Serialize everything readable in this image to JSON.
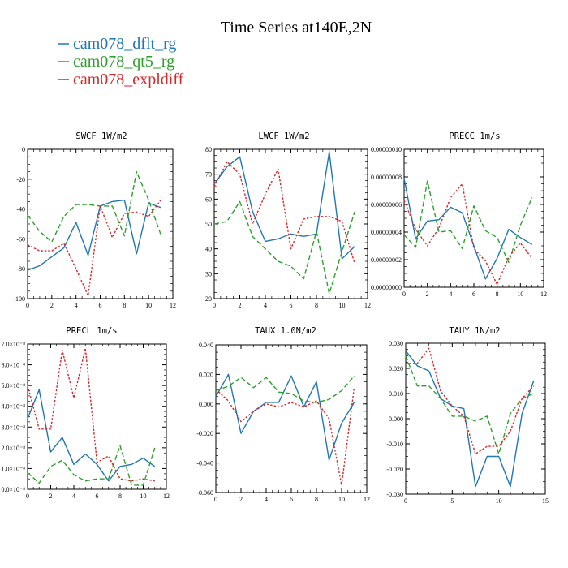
{
  "title": "Time Series at140E,2N",
  "legend": [
    {
      "name": "cam078_dflt_rg",
      "color": "#1f77b4"
    },
    {
      "name": "cam078_qt5_rg",
      "color": "#2ca02c"
    },
    {
      "name": "cam078_expldiff",
      "color": "#d62728"
    }
  ],
  "chart_data": [
    {
      "type": "line",
      "title": "SWCF  1W/m2",
      "x": [
        0,
        1,
        2,
        3,
        4,
        5,
        6,
        7,
        8,
        9,
        10,
        11
      ],
      "xlim": [
        0,
        12
      ],
      "xticks": [
        "0",
        "2",
        "4",
        "6",
        "8",
        "10",
        "12"
      ],
      "ylim": [
        -100,
        0
      ],
      "yticks": [
        "0",
        "-20",
        "-40",
        "-60",
        "-80",
        "-100"
      ],
      "series": [
        {
          "name": "cam078_dflt_rg",
          "values": [
            -81,
            -78,
            -72,
            -66,
            -49,
            -71,
            -38,
            -35,
            -34,
            -70,
            -36,
            -39
          ]
        },
        {
          "name": "cam078_qt5_rg",
          "values": [
            -44,
            -55,
            -62,
            -45,
            -37,
            -37,
            -38,
            -38,
            -58,
            -15,
            -34,
            -57
          ]
        },
        {
          "name": "cam078_expldiff",
          "values": [
            -64,
            -68,
            -68,
            -63,
            -80,
            -98,
            -38,
            -59,
            -43,
            -42,
            -45,
            -34
          ]
        }
      ]
    },
    {
      "type": "line",
      "title": "LWCF  1W/m2",
      "x": [
        0,
        1,
        2,
        3,
        4,
        5,
        6,
        7,
        8,
        9,
        10,
        11
      ],
      "xlim": [
        0,
        12
      ],
      "xticks": [
        "0",
        "2",
        "4",
        "6",
        "8",
        "10",
        "12"
      ],
      "ylim": [
        20,
        80
      ],
      "yticks": [
        "80",
        "70",
        "60",
        "50",
        "40",
        "30",
        "20"
      ],
      "series": [
        {
          "name": "cam078_dflt_rg",
          "values": [
            66,
            73,
            77,
            55,
            43,
            44,
            46,
            45,
            46,
            79,
            36,
            41
          ]
        },
        {
          "name": "cam078_qt5_rg",
          "values": [
            50,
            51,
            59,
            45,
            40,
            35,
            33,
            28,
            47,
            22,
            39,
            55
          ]
        },
        {
          "name": "cam078_expldiff",
          "values": [
            65,
            75,
            70,
            50,
            62,
            72,
            40,
            52,
            53,
            53,
            51,
            34
          ]
        }
      ]
    },
    {
      "type": "line",
      "title": "PRECC  1m/s",
      "x": [
        0,
        1,
        2,
        3,
        4,
        5,
        6,
        7,
        8,
        9,
        10,
        11
      ],
      "xlim": [
        0,
        12
      ],
      "xticks": [
        "0",
        "2",
        "4",
        "6",
        "8",
        "10",
        "12"
      ],
      "ylim": [
        0,
        1e-07
      ],
      "yticks": [
        "0.00000010",
        "0.00000008",
        "0.00000006",
        "0.00000004",
        "0.00000002",
        "0.00000000"
      ],
      "series": [
        {
          "name": "cam078_dflt_rg",
          "values": [
            7.9e-08,
            3.5e-08,
            4.8e-08,
            4.9e-08,
            5.8e-08,
            5.4e-08,
            3e-08,
            6e-09,
            2.1e-08,
            4.2e-08,
            3.6e-08,
            3.1e-08
          ]
        },
        {
          "name": "cam078_qt5_rg",
          "values": [
            3.8e-08,
            2.9e-08,
            7.7e-08,
            4e-08,
            4.1e-08,
            2.8e-08,
            5.9e-08,
            4.1e-08,
            3.6e-08,
            1.8e-08,
            4.5e-08,
            6.5e-08
          ]
        },
        {
          "name": "cam078_expldiff",
          "values": [
            6.3e-08,
            4.2e-08,
            3e-08,
            4.3e-08,
            6.5e-08,
            7.5e-08,
            2.8e-08,
            1.9e-08,
            2e-09,
            2.2e-08,
            3.2e-08,
            2.1e-08
          ]
        }
      ]
    },
    {
      "type": "line",
      "title": "PRECL  1m/s",
      "x": [
        0,
        1,
        2,
        3,
        4,
        5,
        6,
        7,
        8,
        9,
        10,
        11
      ],
      "xlim": [
        0,
        12
      ],
      "xticks": [
        "0",
        "2",
        "4",
        "6",
        "8",
        "10",
        "12"
      ],
      "ylim": [
        0,
        7e-08
      ],
      "yticks": [
        "7.0×10⁻⁸",
        "6.0×10⁻⁸",
        "5.0×10⁻⁸",
        "4.0×10⁻⁸",
        "3.0×10⁻⁸",
        "2.0×10⁻⁸",
        "1.0×10⁻⁸",
        "0.0×10⁻⁸"
      ],
      "series": [
        {
          "name": "cam078_dflt_rg",
          "values": [
            3.4e-08,
            4.8e-08,
            1.8e-08,
            2.5e-08,
            1.2e-08,
            1.7e-08,
            1.2e-08,
            4e-09,
            1.1e-08,
            1.2e-08,
            1.5e-08,
            1.1e-08
          ]
        },
        {
          "name": "cam078_qt5_rg",
          "values": [
            8e-09,
            3e-09,
            1.1e-08,
            1.4e-08,
            7e-09,
            4e-09,
            5e-09,
            5e-09,
            2.1e-08,
            2e-09,
            2e-09,
            2e-08
          ]
        },
        {
          "name": "cam078_expldiff",
          "values": [
            5e-08,
            2.9e-08,
            2.9e-08,
            6.7e-08,
            4.4e-08,
            6.8e-08,
            1.3e-08,
            1.6e-08,
            5e-09,
            4e-09,
            5e-09,
            4e-09
          ]
        }
      ]
    },
    {
      "type": "line",
      "title": "TAUX  1.0N/m2",
      "x": [
        0,
        1,
        2,
        3,
        4,
        5,
        6,
        7,
        8,
        9,
        10,
        11
      ],
      "xlim": [
        0,
        12
      ],
      "xticks": [
        "0",
        "2",
        "4",
        "6",
        "8",
        "10",
        "12"
      ],
      "ylim": [
        -0.06,
        0.04
      ],
      "yticks": [
        "0.040",
        "0.020",
        "0.000",
        "-0.020",
        "-0.040",
        "-0.060"
      ],
      "series": [
        {
          "name": "cam078_dflt_rg",
          "values": [
            0.005,
            0.02,
            -0.02,
            -0.005,
            0.001,
            0.001,
            0.019,
            -0.002,
            0.015,
            -0.038,
            -0.013,
            0.001
          ]
        },
        {
          "name": "cam078_qt5_rg",
          "values": [
            0.009,
            0.012,
            0.018,
            0.011,
            0.018,
            0.008,
            0.007,
            0.002,
            0.001,
            0.003,
            0.009,
            0.019
          ]
        },
        {
          "name": "cam078_expldiff",
          "values": [
            0.01,
            0.002,
            -0.012,
            -0.005,
            0.0,
            -0.002,
            0.001,
            -0.002,
            0.002,
            -0.01,
            -0.055,
            0.011
          ]
        }
      ]
    },
    {
      "type": "line",
      "title": "TAUY  1N/m2",
      "x": [
        0,
        1,
        2,
        3,
        4,
        5,
        6,
        7,
        8,
        9,
        10,
        11
      ],
      "xlim": [
        0,
        12
      ],
      "xticks": [
        "0",
        "5",
        "10",
        "15"
      ],
      "ylim": [
        -0.03,
        0.03
      ],
      "yticks": [
        "0.030",
        "0.020",
        "0.010",
        "0.000",
        "-0.010",
        "-0.020",
        "-0.030"
      ],
      "series": [
        {
          "name": "cam078_dflt_rg",
          "values": [
            0.027,
            0.021,
            0.019,
            0.008,
            0.005,
            0.004,
            -0.027,
            -0.015,
            -0.015,
            -0.027,
            0.002,
            0.015
          ]
        },
        {
          "name": "cam078_qt5_rg",
          "values": [
            0.025,
            0.013,
            0.013,
            0.008,
            0.001,
            0.001,
            -0.001,
            0.001,
            -0.014,
            0.002,
            0.008,
            0.01
          ]
        },
        {
          "name": "cam078_expldiff",
          "values": [
            0.022,
            0.022,
            0.028,
            0.011,
            0.005,
            0.001,
            -0.014,
            -0.011,
            -0.011,
            -0.005,
            0.008,
            0.013
          ]
        }
      ]
    }
  ]
}
